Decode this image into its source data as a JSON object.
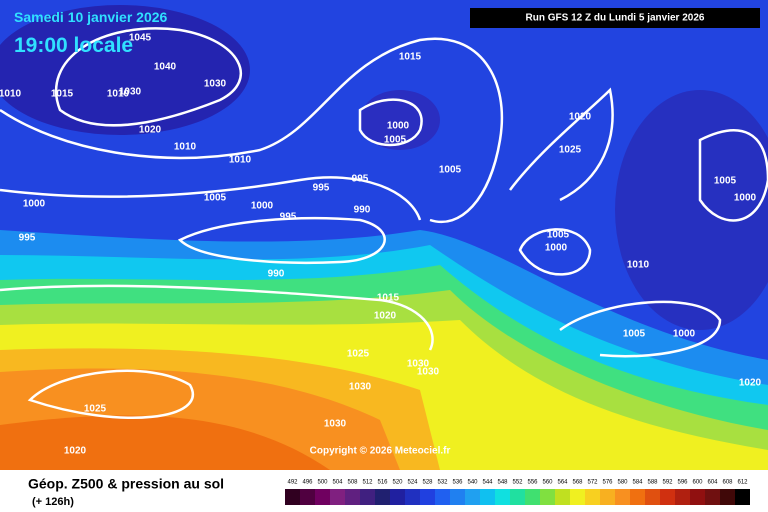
{
  "header": {
    "date": "Samedi 10 janvier 2026",
    "time": "19:00 locale",
    "run": "Run GFS 12 Z du Lundi 5 janvier 2026"
  },
  "isobar_labels": [
    1045,
    1040,
    1030,
    1030,
    1010,
    1015,
    1010,
    1020,
    1010,
    1010,
    1005,
    1000,
    995,
    995,
    995,
    990,
    1000,
    995,
    990,
    1015,
    1000,
    1005,
    1005,
    1020,
    1025,
    1005,
    1000,
    1005,
    1000,
    1010,
    1015,
    1020,
    1025,
    1030,
    1030,
    1030,
    1030,
    1025,
    1020,
    1005,
    1000,
    1020
  ],
  "copyright": "Copyright © 2026 Meteociel.fr",
  "footer": {
    "title": "Géop. Z500 & pression au sol",
    "lead": "(+ 126h)"
  },
  "legend": {
    "scale": [
      {
        "value": 492,
        "color": "#300020"
      },
      {
        "value": 496,
        "color": "#500040"
      },
      {
        "value": 500,
        "color": "#700060"
      },
      {
        "value": 504,
        "color": "#802080"
      },
      {
        "value": 508,
        "color": "#602080"
      },
      {
        "value": 512,
        "color": "#402080"
      },
      {
        "value": 516,
        "color": "#202070"
      },
      {
        "value": 520,
        "color": "#2020a0"
      },
      {
        "value": 524,
        "color": "#2030c0"
      },
      {
        "value": 528,
        "color": "#2040e0"
      },
      {
        "value": 532,
        "color": "#2060f0"
      },
      {
        "value": 536,
        "color": "#2080f0"
      },
      {
        "value": 540,
        "color": "#20a0f0"
      },
      {
        "value": 544,
        "color": "#10c0f0"
      },
      {
        "value": 548,
        "color": "#10e0e0"
      },
      {
        "value": 552,
        "color": "#20e0a0"
      },
      {
        "value": 556,
        "color": "#40e070"
      },
      {
        "value": 560,
        "color": "#80e040"
      },
      {
        "value": 564,
        "color": "#c0e020"
      },
      {
        "value": 568,
        "color": "#f0f020"
      },
      {
        "value": 572,
        "color": "#f8d020"
      },
      {
        "value": 576,
        "color": "#f8b020"
      },
      {
        "value": 580,
        "color": "#f89020"
      },
      {
        "value": 584,
        "color": "#f07010"
      },
      {
        "value": 588,
        "color": "#e05010"
      },
      {
        "value": 592,
        "color": "#d03010"
      },
      {
        "value": 596,
        "color": "#b02010"
      },
      {
        "value": 600,
        "color": "#901010"
      },
      {
        "value": 604,
        "color": "#701010"
      },
      {
        "value": 608,
        "color": "#400808"
      },
      {
        "value": 612,
        "color": "#000000"
      }
    ]
  }
}
